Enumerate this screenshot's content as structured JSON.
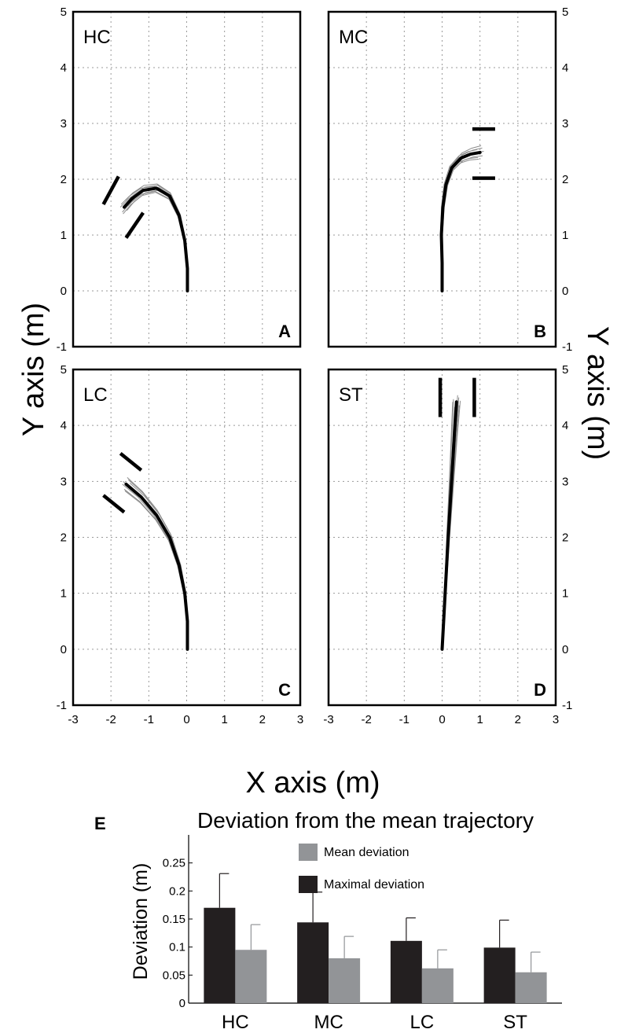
{
  "chart_data": [
    {
      "panel_letter": "A",
      "corner_label": "HC",
      "type": "line",
      "xlim": [
        -3,
        3
      ],
      "ylim": [
        -1,
        5
      ],
      "grid": true,
      "mean_path": [
        [
          0.02,
          0.0
        ],
        [
          0.02,
          0.4
        ],
        [
          -0.05,
          0.9
        ],
        [
          -0.2,
          1.35
        ],
        [
          -0.45,
          1.7
        ],
        [
          -0.8,
          1.84
        ],
        [
          -1.15,
          1.8
        ],
        [
          -1.45,
          1.65
        ],
        [
          -1.65,
          1.5
        ]
      ],
      "gates": [
        [
          [
            -2.2,
            1.55
          ],
          [
            -1.8,
            2.05
          ]
        ],
        [
          [
            -1.6,
            0.95
          ],
          [
            -1.15,
            1.4
          ]
        ]
      ]
    },
    {
      "panel_letter": "B",
      "corner_label": "MC",
      "type": "line",
      "xlim": [
        -3,
        3
      ],
      "ylim": [
        -1,
        5
      ],
      "grid": true,
      "mean_path": [
        [
          0.0,
          0.0
        ],
        [
          0.0,
          0.5
        ],
        [
          -0.02,
          1.0
        ],
        [
          0.02,
          1.5
        ],
        [
          0.1,
          1.9
        ],
        [
          0.25,
          2.2
        ],
        [
          0.5,
          2.38
        ],
        [
          0.75,
          2.45
        ],
        [
          1.0,
          2.48
        ]
      ],
      "gates": [
        [
          [
            0.8,
            2.9
          ],
          [
            1.4,
            2.9
          ]
        ],
        [
          [
            0.8,
            2.02
          ],
          [
            1.4,
            2.02
          ]
        ]
      ]
    },
    {
      "panel_letter": "C",
      "corner_label": "LC",
      "type": "line",
      "xlim": [
        -3,
        3
      ],
      "ylim": [
        -1,
        5
      ],
      "grid": true,
      "mean_path": [
        [
          0.02,
          0.0
        ],
        [
          0.02,
          0.5
        ],
        [
          -0.05,
          1.0
        ],
        [
          -0.2,
          1.5
        ],
        [
          -0.45,
          2.0
        ],
        [
          -0.8,
          2.4
        ],
        [
          -1.2,
          2.72
        ],
        [
          -1.6,
          2.95
        ]
      ],
      "gates": [
        [
          [
            -1.75,
            3.5
          ],
          [
            -1.2,
            3.2
          ]
        ],
        [
          [
            -2.2,
            2.75
          ],
          [
            -1.65,
            2.45
          ]
        ]
      ]
    },
    {
      "panel_letter": "D",
      "corner_label": "ST",
      "type": "line",
      "xlim": [
        -3,
        3
      ],
      "ylim": [
        -1,
        5
      ],
      "grid": true,
      "mean_path": [
        [
          0.0,
          0.0
        ],
        [
          0.08,
          1.0
        ],
        [
          0.16,
          2.0
        ],
        [
          0.25,
          3.0
        ],
        [
          0.32,
          3.8
        ],
        [
          0.38,
          4.42
        ]
      ],
      "gates": [
        [
          [
            -0.05,
            4.85
          ],
          [
            -0.05,
            4.15
          ]
        ],
        [
          [
            0.85,
            4.85
          ],
          [
            0.85,
            4.15
          ]
        ]
      ]
    },
    {
      "panel_letter": "E",
      "type": "bar",
      "title": "Deviation from the mean trajectory",
      "ylabel": "Deviation (m)",
      "xlabel": "",
      "categories": [
        "HC",
        "MC",
        "LC",
        "ST"
      ],
      "ylim": [
        0,
        0.3
      ],
      "yticks": [
        0,
        0.05,
        0.1,
        0.15,
        0.2,
        0.25
      ],
      "legend_position": "top",
      "series": [
        {
          "name": "Maximal deviation",
          "color": "#231f20",
          "values": [
            0.17,
            0.144,
            0.111,
            0.099
          ],
          "errors": [
            0.061,
            0.054,
            0.041,
            0.049
          ]
        },
        {
          "name": "Mean deviation",
          "color": "#929497",
          "values": [
            0.095,
            0.08,
            0.062,
            0.055
          ],
          "errors": [
            0.045,
            0.039,
            0.033,
            0.036
          ]
        }
      ]
    }
  ],
  "axes": {
    "x_label": "X axis (m)",
    "y_label": "Y axis (m)",
    "x_ticks": [
      "-3",
      "-2",
      "-1",
      "0",
      "1",
      "2",
      "3"
    ],
    "y_ticks": [
      "-1",
      "0",
      "1",
      "2",
      "3",
      "4",
      "5"
    ]
  },
  "colors": {
    "mean_path": "#000000",
    "trials": "#8c8c8c",
    "grid": "#9a9a9a"
  }
}
